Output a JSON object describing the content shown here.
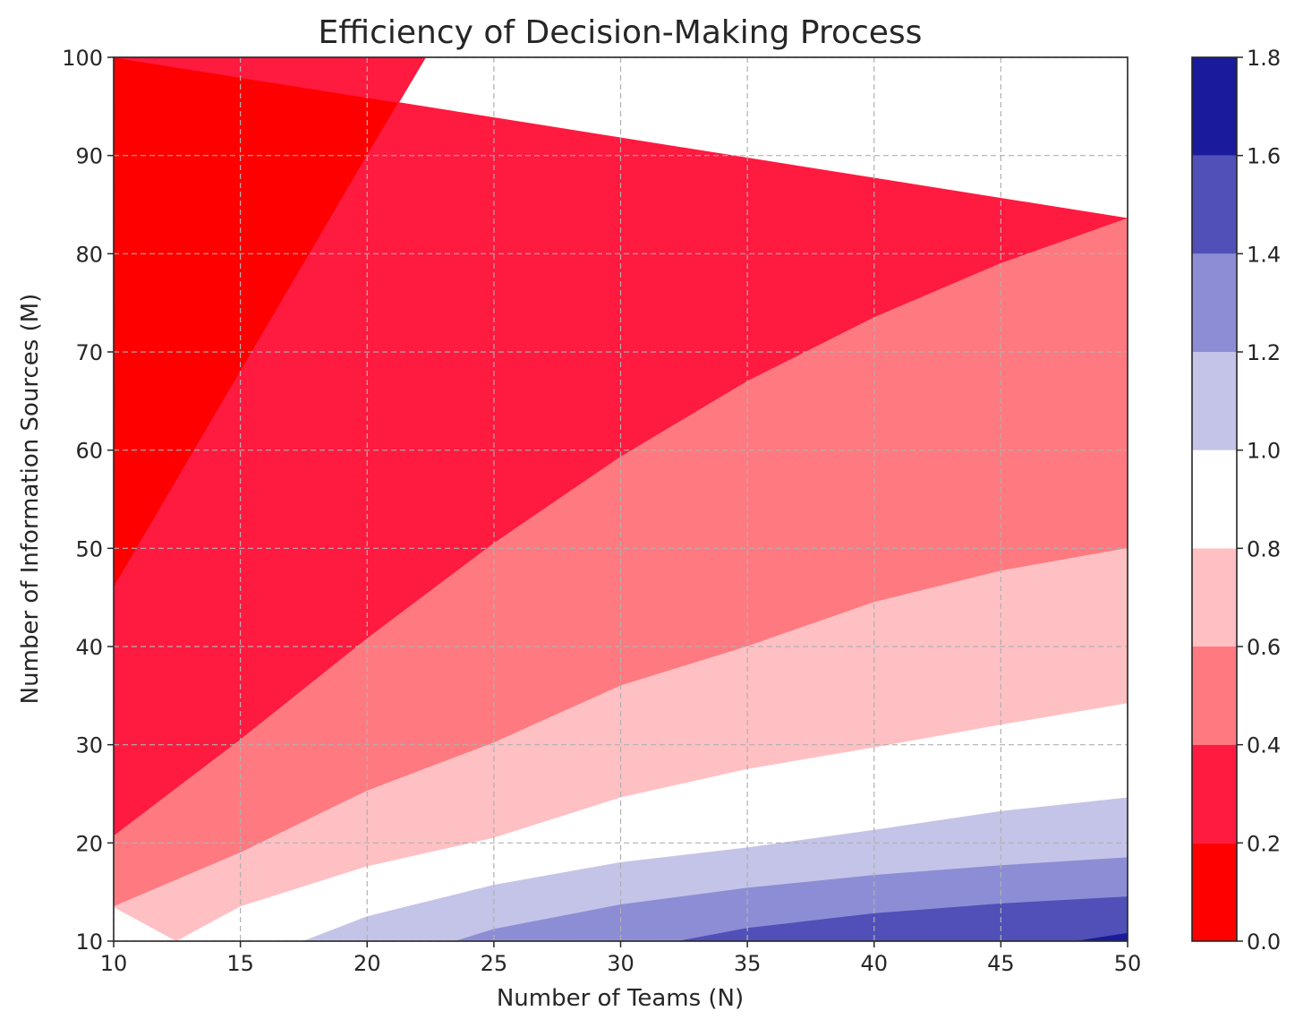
{
  "chart_data": {
    "type": "heatmap",
    "subtype": "filled-contour",
    "title": "Efficiency of Decision-Making Process",
    "xlabel": "Number of Teams (N)",
    "ylabel": "Number of Information Sources (M)",
    "xlim": [
      10,
      50
    ],
    "ylim": [
      10,
      100
    ],
    "xticks": [
      10,
      15,
      20,
      25,
      30,
      35,
      40,
      45,
      50
    ],
    "yticks": [
      10,
      20,
      30,
      40,
      50,
      60,
      70,
      80,
      90,
      100
    ],
    "grid": true,
    "colorbar": {
      "placement": "right",
      "ticks": [
        0.0,
        0.2,
        0.4,
        0.6,
        0.8,
        1.0,
        1.2,
        1.4,
        1.6,
        1.8
      ],
      "tick_labels": [
        "0.0",
        "0.2",
        "0.4",
        "0.6",
        "0.8",
        "1.0",
        "1.2",
        "1.4",
        "1.6",
        "1.8"
      ]
    },
    "levels": [
      {
        "range": [
          0.0,
          0.2
        ],
        "color": "#ff0000"
      },
      {
        "range": [
          0.2,
          0.4
        ],
        "color": "#ff1a40"
      },
      {
        "range": [
          0.4,
          0.6
        ],
        "color": "#ff7a80"
      },
      {
        "range": [
          0.6,
          0.8
        ],
        "color": "#ffc0c4"
      },
      {
        "range": [
          0.8,
          1.0
        ],
        "color": "#ffffff"
      },
      {
        "range": [
          1.0,
          1.2
        ],
        "color": "#c4c4e8"
      },
      {
        "range": [
          1.2,
          1.4
        ],
        "color": "#8d8dd6"
      },
      {
        "range": [
          1.4,
          1.6
        ],
        "color": "#5050b8"
      },
      {
        "range": [
          1.6,
          1.8
        ],
        "color": "#1a1a9c"
      }
    ],
    "contour_lines": [
      {
        "level": 0.2,
        "points": [
          [
            10,
            46
          ],
          [
            15,
            68
          ],
          [
            20,
            90
          ],
          [
            22.3,
            100
          ]
        ]
      },
      {
        "level": 0.4,
        "points": [
          [
            10,
            20.7
          ],
          [
            15,
            30.5
          ],
          [
            20,
            40.8
          ],
          [
            25,
            50.5
          ],
          [
            30,
            59.3
          ],
          [
            35,
            67
          ],
          [
            40,
            73.5
          ],
          [
            45,
            79
          ],
          [
            50,
            83.6
          ]
        ]
      },
      {
        "level": 0.6,
        "points": [
          [
            10,
            13.5
          ],
          [
            15,
            19
          ],
          [
            20,
            25.3
          ],
          [
            25,
            30.2
          ],
          [
            30,
            36
          ],
          [
            35,
            40
          ],
          [
            40,
            44.5
          ],
          [
            45,
            47.7
          ],
          [
            50,
            50
          ]
        ]
      },
      {
        "level": 0.8,
        "points": [
          [
            12.5,
            10
          ],
          [
            15,
            13.5
          ],
          [
            20,
            17.6
          ],
          [
            25,
            20.5
          ],
          [
            30,
            24.6
          ],
          [
            35,
            27.5
          ],
          [
            40,
            29.7
          ],
          [
            45,
            32
          ],
          [
            50,
            34.2
          ]
        ]
      },
      {
        "level": 1.0,
        "points": [
          [
            17.5,
            10
          ],
          [
            20,
            12.5
          ],
          [
            25,
            15.7
          ],
          [
            30,
            18
          ],
          [
            35,
            19.5
          ],
          [
            40,
            21.3
          ],
          [
            45,
            23.2
          ],
          [
            50,
            24.6
          ]
        ]
      },
      {
        "level": 1.2,
        "points": [
          [
            23.5,
            10
          ],
          [
            25,
            11.2
          ],
          [
            30,
            13.7
          ],
          [
            35,
            15.4
          ],
          [
            40,
            16.7
          ],
          [
            45,
            17.7
          ],
          [
            50,
            18.5
          ]
        ]
      },
      {
        "level": 1.4,
        "points": [
          [
            32.3,
            10
          ],
          [
            35,
            11.3
          ],
          [
            40,
            12.8
          ],
          [
            45,
            13.8
          ],
          [
            50,
            14.5
          ]
        ]
      },
      {
        "level": 1.6,
        "points": [
          [
            48,
            10
          ],
          [
            50,
            10.8
          ]
        ]
      }
    ]
  }
}
